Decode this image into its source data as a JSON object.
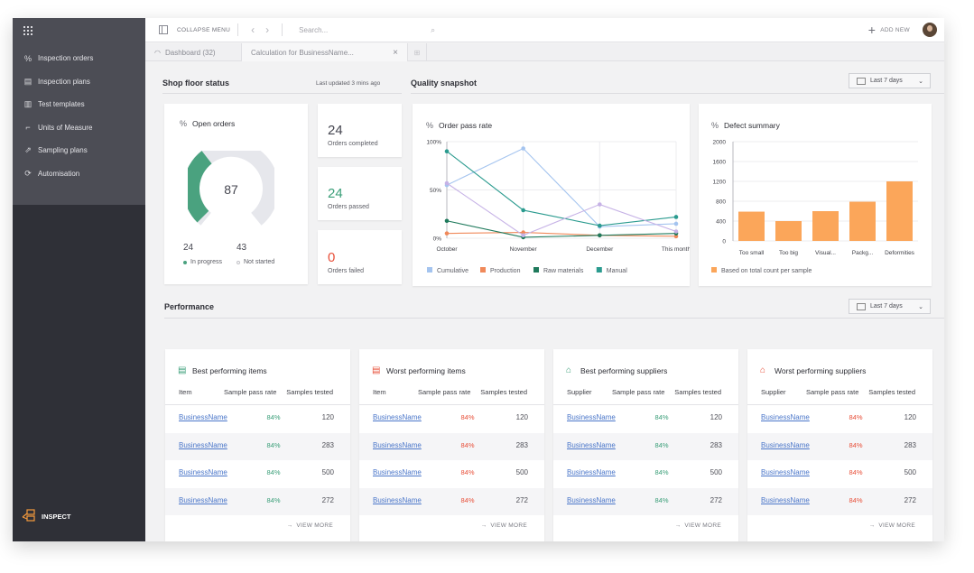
{
  "sidebar": {
    "items": [
      {
        "label": "Inspection orders",
        "icon": "percent-icon"
      },
      {
        "label": "Inspection plans",
        "icon": "document-icon"
      },
      {
        "label": "Test templates",
        "icon": "clipboard-icon"
      },
      {
        "label": "Units of Measure",
        "icon": "ruler-icon"
      },
      {
        "label": "Sampling plans",
        "icon": "chart-icon"
      },
      {
        "label": "Automisation",
        "icon": "refresh-icon"
      }
    ],
    "brand": "INSPECT"
  },
  "topbar": {
    "collapse_label": "COLLAPSE MENU",
    "search_placeholder": "Search...",
    "add_new_label": "ADD NEW"
  },
  "tabs": [
    {
      "label": "Dashboard (32)"
    },
    {
      "label": "Calculation for BusinessName..."
    }
  ],
  "shop_floor": {
    "title": "Shop floor status",
    "updated": "Last updated 3 mins ago",
    "open_orders_title": "Open orders",
    "open_orders_value": "87",
    "gauge_fraction": 0.36,
    "in_progress_value": "24",
    "in_progress_label": "In progress",
    "not_started_value": "43",
    "not_started_label": "Not started",
    "stats": [
      {
        "value": "24",
        "label": "Orders completed",
        "color": "#454650"
      },
      {
        "value": "24",
        "label": "Orders passed",
        "color": "#3a9e78"
      },
      {
        "value": "0",
        "label": "Orders failed",
        "color": "#e8503a"
      }
    ]
  },
  "quality": {
    "title": "Quality snapshot",
    "range": "Last 7 days"
  },
  "performance": {
    "title": "Performance",
    "range": "Last 7 days",
    "view_more": "VIEW MORE",
    "cards": [
      {
        "title": "Best performing items",
        "col1": "Item",
        "col2": "Sample pass rate",
        "col3": "Samples tested",
        "rate_color": "#3a9e78",
        "icon": "list-icon",
        "rows": [
          {
            "name": "BusinessName",
            "rate": "84%",
            "count": "120"
          },
          {
            "name": "BusinessName",
            "rate": "84%",
            "count": "283"
          },
          {
            "name": "BusinessName",
            "rate": "84%",
            "count": "500"
          },
          {
            "name": "BusinessName",
            "rate": "84%",
            "count": "272"
          }
        ]
      },
      {
        "title": "Worst performing items",
        "col1": "Item",
        "col2": "Sample pass rate",
        "col3": "Samples tested",
        "rate_color": "#e8503a",
        "icon": "list-icon",
        "rows": [
          {
            "name": "BusinessName",
            "rate": "84%",
            "count": "120"
          },
          {
            "name": "BusinessName",
            "rate": "84%",
            "count": "283"
          },
          {
            "name": "BusinessName",
            "rate": "84%",
            "count": "500"
          },
          {
            "name": "BusinessName",
            "rate": "84%",
            "count": "272"
          }
        ]
      },
      {
        "title": "Best performing suppliers",
        "col1": "Supplier",
        "col2": "Sample pass rate",
        "col3": "Samples tested",
        "rate_color": "#3a9e78",
        "icon": "building-icon",
        "rows": [
          {
            "name": "BusinessName",
            "rate": "84%",
            "count": "120"
          },
          {
            "name": "BusinessName",
            "rate": "84%",
            "count": "283"
          },
          {
            "name": "BusinessName",
            "rate": "84%",
            "count": "500"
          },
          {
            "name": "BusinessName",
            "rate": "84%",
            "count": "272"
          }
        ]
      },
      {
        "title": "Worst performing suppliers",
        "col1": "Supplier",
        "col2": "Sample pass rate",
        "col3": "Samples tested",
        "rate_color": "#e8503a",
        "icon": "building-icon",
        "rows": [
          {
            "name": "BusinessName",
            "rate": "84%",
            "count": "120"
          },
          {
            "name": "BusinessName",
            "rate": "84%",
            "count": "283"
          },
          {
            "name": "BusinessName",
            "rate": "84%",
            "count": "500"
          },
          {
            "name": "BusinessName",
            "rate": "84%",
            "count": "272"
          }
        ]
      }
    ]
  },
  "chart_data": [
    {
      "type": "line",
      "title": "Order pass rate",
      "categories": [
        "October",
        "November",
        "December",
        "This month"
      ],
      "y_ticks": [
        "0%",
        "50%",
        "100%"
      ],
      "ylim": [
        0,
        100
      ],
      "series": [
        {
          "name": "Cumulative",
          "color": "#a4c4ef",
          "values": [
            55,
            93,
            12,
            15
          ]
        },
        {
          "name": "Production",
          "color": "#f0895a",
          "values": [
            5,
            6,
            3,
            2
          ]
        },
        {
          "name": "Raw materials",
          "color": "#1f7a5c",
          "values": [
            18,
            1,
            3,
            5
          ]
        },
        {
          "name": "Manual",
          "color": "#2b9b8f",
          "values": [
            90,
            29,
            13,
            22
          ]
        },
        {
          "name": "",
          "color": "#c6b2e6",
          "values": [
            57,
            3,
            35,
            7
          ]
        }
      ]
    },
    {
      "type": "bar",
      "title": "Defect summary",
      "categories": [
        "Too small",
        "Too big",
        "Visual...",
        "Packg...",
        "Deformities"
      ],
      "values": [
        590,
        400,
        600,
        790,
        1200
      ],
      "y_ticks": [
        "0",
        "400",
        "800",
        "1200",
        "1600",
        "2000"
      ],
      "ylim": [
        0,
        2000
      ],
      "color": "#fba65a",
      "legend": "Based on total count per sample"
    }
  ]
}
